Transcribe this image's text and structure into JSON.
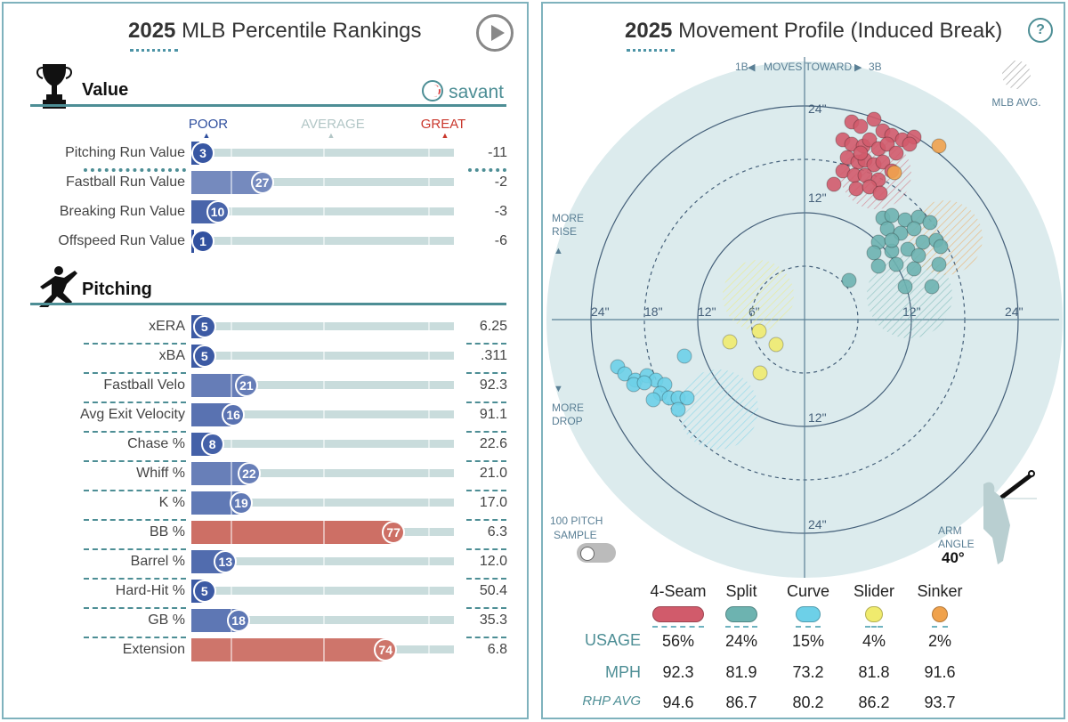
{
  "left": {
    "title_year": "2025",
    "title_rest": "MLB Percentile Rankings",
    "value_section": "Value",
    "pitching_section": "Pitching",
    "savant": "savant",
    "scale": {
      "poor": "POOR",
      "average": "AVERAGE",
      "great": "GREAT"
    },
    "colors": {
      "poor": "#2f4f9e",
      "average": "#b2c6c6",
      "great": "#c9372c"
    },
    "value_rows": [
      {
        "label": "Pitching Run Value",
        "pct": 3,
        "value": "-11"
      },
      {
        "label": "Fastball Run Value",
        "pct": 27,
        "value": "-2"
      },
      {
        "label": "Breaking Run Value",
        "pct": 10,
        "value": "-3"
      },
      {
        "label": "Offspeed Run Value",
        "pct": 1,
        "value": "-6"
      }
    ],
    "pitching_rows": [
      {
        "label": "xERA",
        "pct": 5,
        "value": "6.25"
      },
      {
        "label": "xBA",
        "pct": 5,
        "value": ".311"
      },
      {
        "label": "Fastball Velo",
        "pct": 21,
        "value": "92.3"
      },
      {
        "label": "Avg Exit Velocity",
        "pct": 16,
        "value": "91.1"
      },
      {
        "label": "Chase %",
        "pct": 8,
        "value": "22.6"
      },
      {
        "label": "Whiff %",
        "pct": 22,
        "value": "21.0"
      },
      {
        "label": "K %",
        "pct": 19,
        "value": "17.0"
      },
      {
        "label": "BB %",
        "pct": 77,
        "value": "6.3"
      },
      {
        "label": "Barrel %",
        "pct": 13,
        "value": "12.0"
      },
      {
        "label": "Hard-Hit %",
        "pct": 5,
        "value": "50.4"
      },
      {
        "label": "GB %",
        "pct": 18,
        "value": "35.3"
      },
      {
        "label": "Extension",
        "pct": 74,
        "value": "6.8"
      }
    ]
  },
  "right": {
    "title_year": "2025",
    "title_rest": "Movement Profile (Induced Break)",
    "help": "?",
    "direction_1b": "1B",
    "direction_text": "MOVES TOWARD",
    "direction_3b": "3B",
    "mlb_avg": "MLB AVG.",
    "more_rise": [
      "MORE",
      "RISE"
    ],
    "more_drop": [
      "MORE",
      "DROP"
    ],
    "sample": [
      "100 PITCH",
      "SAMPLE"
    ],
    "arm_angle_label": [
      "ARM",
      "ANGLE"
    ],
    "arm_angle": "40°",
    "row_labels": {
      "usage": "USAGE",
      "mph": "MPH",
      "rhp": "RHP AVG"
    }
  },
  "chart_data": {
    "type": "scatter",
    "x_unit": "inches horizontal break (toward 3B positive)",
    "y_unit": "inches induced vertical break",
    "rings": [
      6,
      12,
      18,
      24
    ],
    "axis_labels": {
      "h": [
        "24\"",
        "18\"",
        "12\"",
        "6\"",
        "12\"",
        "24\""
      ],
      "v": [
        "24\"",
        "12\"",
        "12\"",
        "24\""
      ]
    },
    "series": [
      {
        "name": "4-Seam",
        "color": "#d15b6b",
        "usage": "56%",
        "mph": "92.3",
        "rhp_avg": "94.6",
        "avg": [
          8,
          16.4,
          4
        ],
        "points": [
          [
            5.3,
            22.2
          ],
          [
            6.3,
            21.7
          ],
          [
            7.8,
            22.5
          ],
          [
            8.8,
            21.2
          ],
          [
            9.8,
            20.7
          ],
          [
            11,
            20.2
          ],
          [
            12.3,
            20.5
          ],
          [
            4.3,
            20.2
          ],
          [
            5.3,
            19.7
          ],
          [
            6.6,
            19.5
          ],
          [
            7.3,
            20.2
          ],
          [
            8.3,
            19.2
          ],
          [
            9.3,
            19.7
          ],
          [
            10.3,
            18.7
          ],
          [
            4.8,
            18.2
          ],
          [
            6,
            17.7
          ],
          [
            6.8,
            17.9
          ],
          [
            7.8,
            17.4
          ],
          [
            8.8,
            17.7
          ],
          [
            9.8,
            16.7
          ],
          [
            4.3,
            16.7
          ],
          [
            5.6,
            16.2
          ],
          [
            6.8,
            16.2
          ],
          [
            8.3,
            15.7
          ],
          [
            5.8,
            14.7
          ],
          [
            7.3,
            14.9
          ],
          [
            3.3,
            15.2
          ],
          [
            8.5,
            14.2
          ],
          [
            11.8,
            19.7
          ],
          [
            6.3,
            18.7
          ]
        ]
      },
      {
        "name": "Split",
        "color": "#6db3b0",
        "usage": "24%",
        "mph": "81.9",
        "rhp_avg": "86.7",
        "avg": [
          11.8,
          2.7,
          4.8
        ],
        "points": [
          [
            8.8,
            11.4
          ],
          [
            9.8,
            11.7
          ],
          [
            11.3,
            11.2
          ],
          [
            12.8,
            11.5
          ],
          [
            14.1,
            10.9
          ],
          [
            9.3,
            10.2
          ],
          [
            10.8,
            9.7
          ],
          [
            12.3,
            10.2
          ],
          [
            13.3,
            8.7
          ],
          [
            14.8,
            8.9
          ],
          [
            8.3,
            8.7
          ],
          [
            9.8,
            7.7
          ],
          [
            11.6,
            7.9
          ],
          [
            12.8,
            7.2
          ],
          [
            7.8,
            7.5
          ],
          [
            15.3,
            8.2
          ],
          [
            10.3,
            6.2
          ],
          [
            12.3,
            5.7
          ],
          [
            8.3,
            6
          ],
          [
            5,
            4.4
          ],
          [
            11.3,
            3.7
          ],
          [
            14.3,
            3.7
          ],
          [
            15.1,
            6.2
          ],
          [
            9.8,
            8.9
          ]
        ]
      },
      {
        "name": "Curve",
        "color": "#6dd0e8",
        "usage": "15%",
        "mph": "73.2",
        "rhp_avg": "80.2",
        "avg": [
          -9.7,
          -10.1,
          4.5
        ],
        "points": [
          [
            -13.5,
            -4.1
          ],
          [
            -21,
            -5.3
          ],
          [
            -20.2,
            -6.1
          ],
          [
            -19,
            -6.8
          ],
          [
            -17.7,
            -6.3
          ],
          [
            -16.7,
            -6.8
          ],
          [
            -15.7,
            -7.3
          ],
          [
            -19.2,
            -7.3
          ],
          [
            -16.2,
            -8.3
          ],
          [
            -15.2,
            -8.8
          ],
          [
            -14.2,
            -8.8
          ],
          [
            -13.2,
            -8.8
          ],
          [
            -17,
            -9
          ],
          [
            -14.2,
            -10.1
          ],
          [
            -18,
            -7.1
          ]
        ]
      },
      {
        "name": "Slider",
        "color": "#f0eb6e",
        "usage": "4%",
        "mph": "81.8",
        "rhp_avg": "86.2",
        "avg": [
          -5.2,
          2.7,
          4
        ],
        "points": [
          [
            -8.4,
            -2.5
          ],
          [
            -5.1,
            -1.3
          ],
          [
            -3.2,
            -2.8
          ],
          [
            -5,
            -6
          ]
        ]
      },
      {
        "name": "Sinker",
        "color": "#f0a24c",
        "usage": "2%",
        "mph": "91.6",
        "rhp_avg": "93.7",
        "avg": [
          15.8,
          9.2,
          4.2
        ],
        "points": [
          [
            15.1,
            19.5
          ],
          [
            10.1,
            16.5
          ]
        ]
      }
    ]
  }
}
